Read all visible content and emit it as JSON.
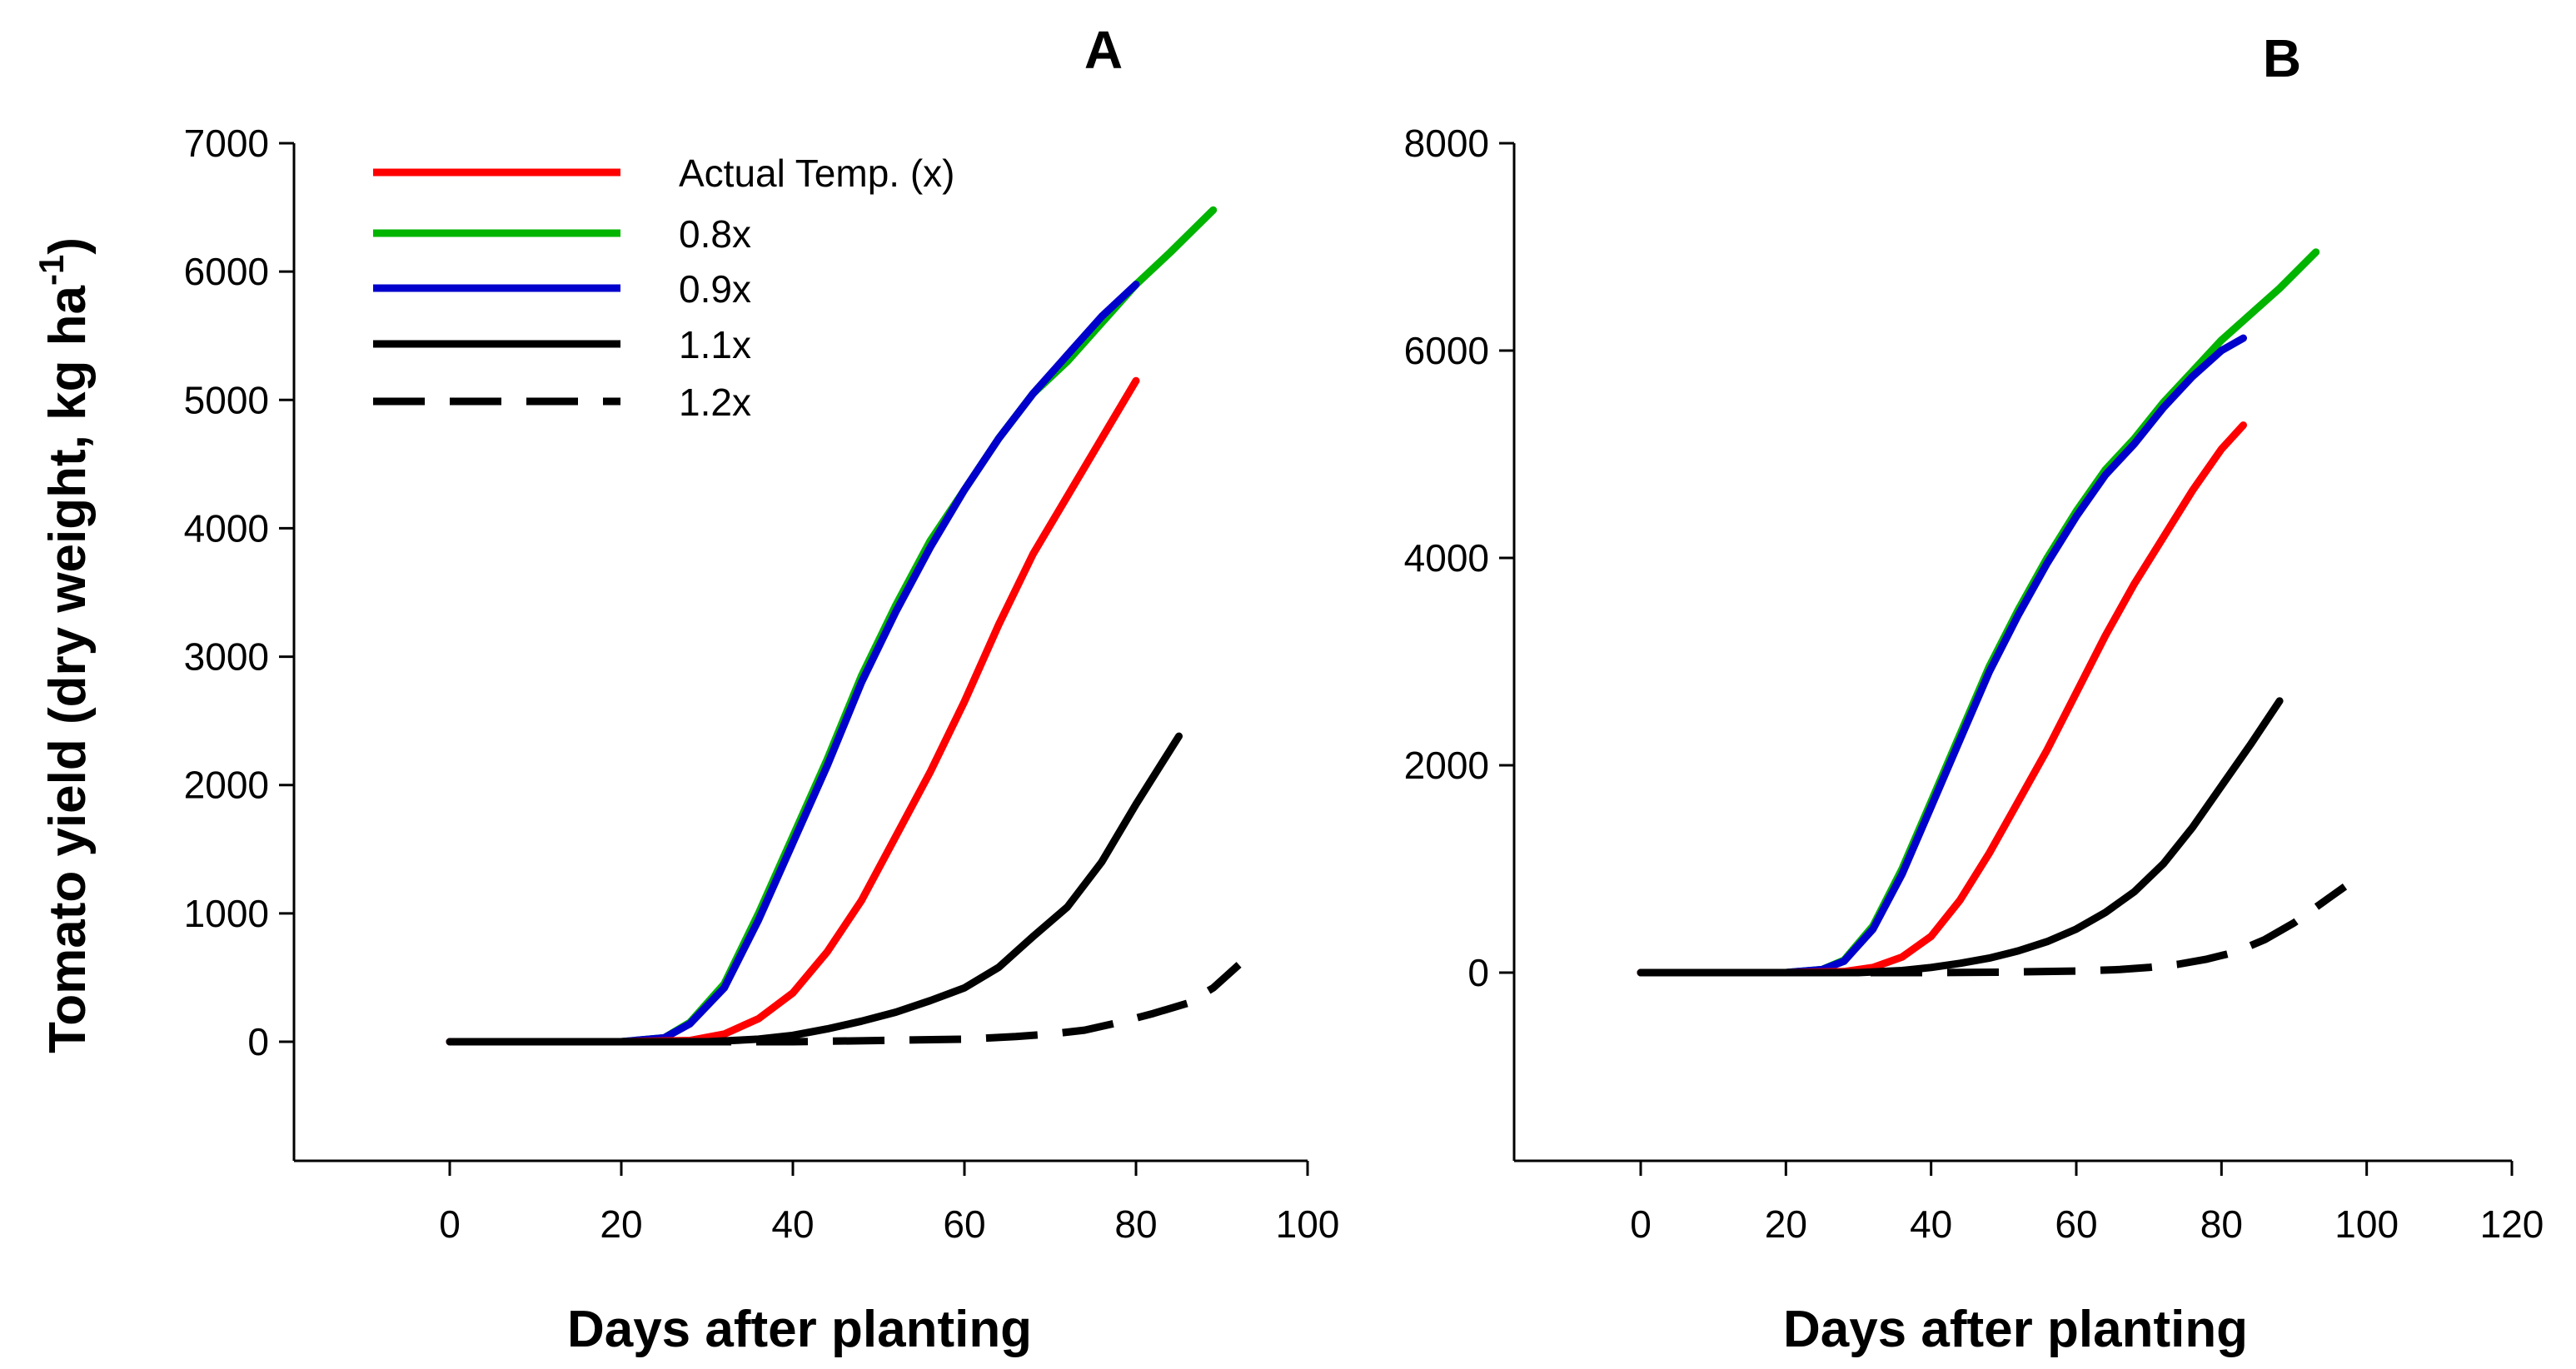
{
  "chart_data": [
    {
      "type": "line",
      "panel_label": "A",
      "title": "",
      "xlabel": "Days after planting",
      "ylabel": "Tomato yield (dry weight, kg ha",
      "ylabel_sup": "-1",
      "ylabel_close": ")",
      "xlim": [
        -18,
        100
      ],
      "ylim": [
        -900,
        7000
      ],
      "xticks": [
        0,
        20,
        40,
        60,
        80,
        100
      ],
      "yticks": [
        0,
        1000,
        2000,
        3000,
        4000,
        5000,
        6000,
        7000
      ],
      "legend_position": "top-left",
      "series": [
        {
          "name": "Actual Temp. (x)",
          "color": "#ff0000",
          "dash": "solid",
          "x": [
            0,
            20,
            28,
            32,
            36,
            40,
            44,
            48,
            52,
            56,
            60,
            64,
            68,
            72,
            76,
            80
          ],
          "y": [
            0,
            0,
            10,
            60,
            180,
            380,
            700,
            1100,
            1600,
            2100,
            2650,
            3250,
            3800,
            4250,
            4700,
            5150
          ]
        },
        {
          "name": "0.8x",
          "color": "#00b400",
          "dash": "solid",
          "x": [
            0,
            20,
            25,
            28,
            32,
            36,
            40,
            44,
            48,
            52,
            56,
            60,
            64,
            68,
            72,
            76,
            80,
            84,
            89
          ],
          "y": [
            0,
            0,
            30,
            150,
            450,
            1000,
            1600,
            2200,
            2850,
            3400,
            3900,
            4300,
            4700,
            5050,
            5300,
            5600,
            5900,
            6150,
            6480
          ]
        },
        {
          "name": "0.9x",
          "color": "#0000cc",
          "dash": "solid",
          "x": [
            0,
            20,
            25,
            28,
            32,
            36,
            40,
            44,
            48,
            52,
            56,
            60,
            64,
            68,
            72,
            76,
            80
          ],
          "y": [
            0,
            0,
            30,
            140,
            420,
            950,
            1550,
            2150,
            2800,
            3350,
            3850,
            4300,
            4700,
            5050,
            5350,
            5650,
            5900
          ]
        },
        {
          "name": "1.1x",
          "color": "#000000",
          "dash": "solid",
          "x": [
            0,
            20,
            30,
            36,
            40,
            44,
            48,
            52,
            56,
            60,
            64,
            68,
            72,
            76,
            80,
            85
          ],
          "y": [
            0,
            0,
            0,
            20,
            50,
            100,
            160,
            230,
            320,
            420,
            580,
            820,
            1050,
            1400,
            1850,
            2380
          ]
        },
        {
          "name": "1.2x",
          "color": "#000000",
          "dash": "dashed",
          "x": [
            0,
            20,
            40,
            50,
            60,
            66,
            70,
            74,
            78,
            82,
            86,
            89,
            92
          ],
          "y": [
            0,
            0,
            0,
            10,
            20,
            40,
            60,
            90,
            150,
            220,
            300,
            420,
            600
          ]
        }
      ]
    },
    {
      "type": "line",
      "panel_label": "B",
      "title": "",
      "xlabel": "Days after planting",
      "ylabel": "",
      "xlim": [
        -20,
        120
      ],
      "ylim": [
        -1800,
        8000
      ],
      "xticks": [
        0,
        20,
        40,
        60,
        80,
        100,
        120
      ],
      "yticks": [
        0,
        2000,
        4000,
        6000,
        8000
      ],
      "series": [
        {
          "name": "Actual Temp. (x)",
          "color": "#ff0000",
          "dash": "solid",
          "x": [
            0,
            20,
            28,
            32,
            36,
            40,
            44,
            48,
            52,
            56,
            60,
            64,
            68,
            72,
            76,
            80,
            83
          ],
          "y": [
            0,
            0,
            10,
            50,
            150,
            350,
            700,
            1150,
            1650,
            2150,
            2700,
            3250,
            3750,
            4200,
            4650,
            5050,
            5280
          ]
        },
        {
          "name": "0.8x",
          "color": "#00b400",
          "dash": "solid",
          "x": [
            0,
            20,
            25,
            28,
            32,
            36,
            40,
            44,
            48,
            52,
            56,
            60,
            64,
            68,
            72,
            76,
            80,
            84,
            88,
            93
          ],
          "y": [
            0,
            0,
            30,
            120,
            450,
            1000,
            1650,
            2300,
            2950,
            3500,
            4000,
            4450,
            4850,
            5150,
            5500,
            5800,
            6100,
            6350,
            6600,
            6950
          ]
        },
        {
          "name": "0.9x",
          "color": "#0000cc",
          "dash": "solid",
          "x": [
            0,
            20,
            25,
            28,
            32,
            36,
            40,
            44,
            48,
            52,
            56,
            60,
            64,
            68,
            72,
            76,
            80,
            83
          ],
          "y": [
            0,
            0,
            30,
            110,
            420,
            950,
            1600,
            2250,
            2900,
            3450,
            3950,
            4400,
            4800,
            5100,
            5450,
            5750,
            6000,
            6120
          ]
        },
        {
          "name": "1.1x",
          "color": "#000000",
          "dash": "solid",
          "x": [
            0,
            20,
            30,
            36,
            40,
            44,
            48,
            52,
            56,
            60,
            64,
            68,
            72,
            76,
            80,
            84,
            88
          ],
          "y": [
            0,
            0,
            0,
            20,
            50,
            90,
            140,
            210,
            300,
            420,
            580,
            780,
            1050,
            1400,
            1800,
            2200,
            2620
          ]
        },
        {
          "name": "1.2x",
          "color": "#000000",
          "dash": "dashed",
          "x": [
            0,
            20,
            40,
            50,
            60,
            66,
            70,
            74,
            78,
            82,
            86,
            90,
            94,
            97
          ],
          "y": [
            0,
            0,
            0,
            5,
            15,
            30,
            50,
            80,
            130,
            200,
            320,
            480,
            680,
            830
          ]
        }
      ]
    }
  ]
}
